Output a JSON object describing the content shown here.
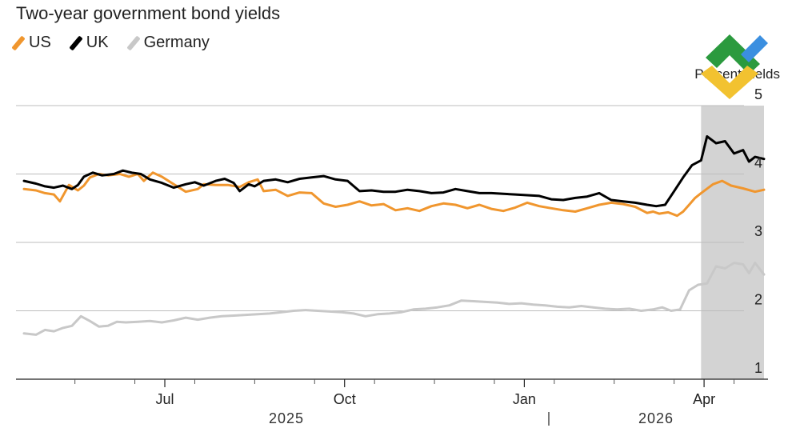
{
  "chart_data": {
    "type": "line",
    "title": "Two-year government bond yields",
    "ylabel": "Percent yields",
    "ylim": [
      1,
      5
    ],
    "yticks": [
      "1",
      "2",
      "3",
      "4",
      "5"
    ],
    "xticks": [
      "Jul",
      "Oct",
      "Jan",
      "Apr"
    ],
    "years": [
      "2025",
      "2026"
    ],
    "xlim": [
      0,
      13
    ],
    "shaded_region": [
      11.3,
      12.35
    ],
    "series": [
      {
        "name": "US",
        "color": "#f0962e",
        "x": [
          0,
          0.2,
          0.35,
          0.5,
          0.6,
          0.75,
          0.9,
          1.0,
          1.1,
          1.25,
          1.4,
          1.6,
          1.75,
          1.9,
          2.0,
          2.15,
          2.3,
          2.5,
          2.7,
          2.9,
          3.0,
          3.2,
          3.4,
          3.6,
          3.75,
          3.9,
          4.0,
          4.2,
          4.4,
          4.6,
          4.8,
          5.0,
          5.2,
          5.4,
          5.6,
          5.8,
          6.0,
          6.2,
          6.4,
          6.6,
          6.8,
          7.0,
          7.2,
          7.4,
          7.6,
          7.8,
          8.0,
          8.2,
          8.4,
          8.6,
          8.8,
          9.0,
          9.2,
          9.4,
          9.6,
          9.8,
          10.0,
          10.2,
          10.4,
          10.5,
          10.6,
          10.75,
          10.9,
          11.0,
          11.1,
          11.2,
          11.3,
          11.5,
          11.65,
          11.8,
          12.0,
          12.2,
          12.35
        ],
        "values": [
          3.78,
          3.76,
          3.72,
          3.7,
          3.6,
          3.84,
          3.76,
          3.83,
          3.95,
          4.0,
          3.98,
          4.0,
          3.96,
          4.0,
          3.9,
          4.02,
          3.96,
          3.85,
          3.74,
          3.78,
          3.85,
          3.84,
          3.84,
          3.81,
          3.88,
          3.92,
          3.75,
          3.77,
          3.68,
          3.73,
          3.72,
          3.57,
          3.52,
          3.55,
          3.6,
          3.54,
          3.56,
          3.47,
          3.5,
          3.46,
          3.53,
          3.57,
          3.55,
          3.5,
          3.55,
          3.49,
          3.46,
          3.51,
          3.58,
          3.53,
          3.5,
          3.47,
          3.45,
          3.5,
          3.55,
          3.58,
          3.56,
          3.52,
          3.43,
          3.45,
          3.42,
          3.44,
          3.39,
          3.45,
          3.55,
          3.65,
          3.72,
          3.85,
          3.9,
          3.83,
          3.79,
          3.74,
          3.77
        ]
      },
      {
        "name": "UK",
        "color": "#000000",
        "x": [
          0,
          0.2,
          0.35,
          0.5,
          0.65,
          0.8,
          0.9,
          1.0,
          1.15,
          1.3,
          1.5,
          1.65,
          1.8,
          1.95,
          2.1,
          2.3,
          2.5,
          2.7,
          2.85,
          3.0,
          3.2,
          3.35,
          3.5,
          3.6,
          3.75,
          3.85,
          4.0,
          4.2,
          4.4,
          4.6,
          4.8,
          5.0,
          5.2,
          5.4,
          5.6,
          5.8,
          6.0,
          6.2,
          6.4,
          6.6,
          6.8,
          7.0,
          7.2,
          7.4,
          7.6,
          7.8,
          8.0,
          8.2,
          8.4,
          8.6,
          8.8,
          9.0,
          9.2,
          9.4,
          9.6,
          9.8,
          10.0,
          10.2,
          10.4,
          10.55,
          10.7,
          10.85,
          11.0,
          11.15,
          11.3,
          11.4,
          11.55,
          11.7,
          11.85,
          12.0,
          12.1,
          12.2,
          12.35
        ],
        "values": [
          3.9,
          3.86,
          3.82,
          3.8,
          3.83,
          3.78,
          3.84,
          3.96,
          4.02,
          3.98,
          4.0,
          4.05,
          4.02,
          4.0,
          3.92,
          3.87,
          3.8,
          3.85,
          3.88,
          3.83,
          3.9,
          3.93,
          3.87,
          3.75,
          3.85,
          3.82,
          3.9,
          3.92,
          3.88,
          3.93,
          3.95,
          3.97,
          3.92,
          3.9,
          3.75,
          3.76,
          3.74,
          3.74,
          3.77,
          3.75,
          3.72,
          3.73,
          3.78,
          3.75,
          3.72,
          3.72,
          3.71,
          3.7,
          3.69,
          3.68,
          3.63,
          3.62,
          3.65,
          3.67,
          3.72,
          3.62,
          3.6,
          3.58,
          3.55,
          3.53,
          3.55,
          3.75,
          3.95,
          4.13,
          4.2,
          4.55,
          4.45,
          4.48,
          4.3,
          4.35,
          4.18,
          4.25,
          4.22
        ]
      },
      {
        "name": "Germany",
        "color": "#c8c8c8",
        "x": [
          0,
          0.2,
          0.35,
          0.5,
          0.65,
          0.8,
          0.95,
          1.1,
          1.25,
          1.4,
          1.55,
          1.7,
          1.9,
          2.1,
          2.3,
          2.5,
          2.7,
          2.9,
          3.1,
          3.3,
          3.5,
          3.7,
          3.9,
          4.1,
          4.3,
          4.5,
          4.7,
          4.9,
          5.1,
          5.3,
          5.5,
          5.7,
          5.9,
          6.1,
          6.3,
          6.5,
          6.7,
          6.9,
          7.1,
          7.3,
          7.5,
          7.7,
          7.9,
          8.1,
          8.3,
          8.5,
          8.7,
          8.9,
          9.1,
          9.3,
          9.5,
          9.7,
          9.9,
          10.1,
          10.3,
          10.5,
          10.65,
          10.8,
          10.95,
          11.1,
          11.25,
          11.4,
          11.55,
          11.7,
          11.85,
          12.0,
          12.1,
          12.2,
          12.35
        ],
        "values": [
          1.67,
          1.65,
          1.72,
          1.7,
          1.75,
          1.78,
          1.92,
          1.85,
          1.77,
          1.78,
          1.84,
          1.83,
          1.84,
          1.85,
          1.83,
          1.86,
          1.9,
          1.87,
          1.9,
          1.92,
          1.93,
          1.94,
          1.95,
          1.96,
          1.98,
          2.0,
          2.01,
          2.0,
          1.99,
          1.98,
          1.96,
          1.92,
          1.95,
          1.96,
          1.98,
          2.02,
          2.03,
          2.05,
          2.08,
          2.15,
          2.14,
          2.13,
          2.12,
          2.1,
          2.11,
          2.09,
          2.08,
          2.06,
          2.05,
          2.07,
          2.05,
          2.03,
          2.02,
          2.03,
          2.0,
          2.02,
          2.05,
          2.0,
          2.02,
          2.3,
          2.38,
          2.4,
          2.65,
          2.62,
          2.7,
          2.68,
          2.55,
          2.7,
          2.53
        ]
      }
    ]
  },
  "branding": {
    "logo_colors": [
      "#2b9a3e",
      "#3b8fe0",
      "#f2c230"
    ]
  }
}
